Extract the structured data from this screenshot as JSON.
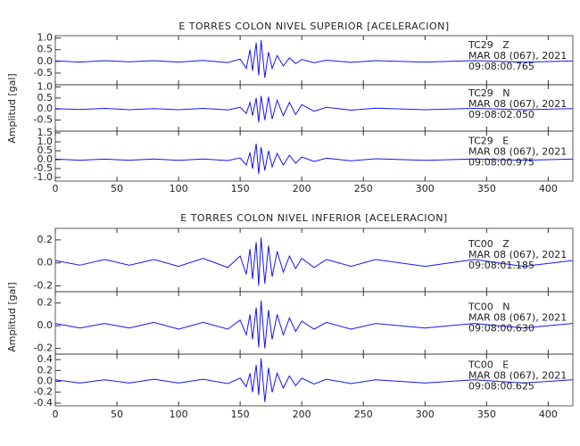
{
  "chart_data": [
    {
      "type": "line",
      "title": "E TORRES COLON NIVEL SUPERIOR [ACELERACION]",
      "ylabel": "Amplitud [gal]",
      "color": "#1414ff",
      "xlim": [
        0,
        420
      ],
      "xticks": [
        0,
        50,
        100,
        150,
        200,
        250,
        300,
        350,
        400
      ],
      "x": [
        0,
        20,
        40,
        60,
        80,
        100,
        120,
        140,
        150,
        155,
        158,
        160,
        163,
        165,
        167,
        170,
        173,
        176,
        180,
        185,
        190,
        195,
        200,
        210,
        220,
        240,
        260,
        300,
        340,
        380,
        420
      ],
      "panels": [
        {
          "station": "TC29   Z",
          "date": "MAR 08 (067), 2021",
          "time": "09:08:00.765",
          "ylim": [
            -1.0,
            1.1
          ],
          "yticks": [
            -0.5,
            {
              "value": 0,
              "label": "0.0"
            },
            0.5,
            {
              "value": 1,
              "label": "1.0"
            }
          ],
          "values": [
            0.02,
            -0.03,
            0.03,
            -0.02,
            0.03,
            -0.03,
            0.04,
            -0.05,
            0.1,
            -0.3,
            0.5,
            -0.4,
            0.8,
            -0.6,
            0.9,
            -0.7,
            0.4,
            -0.3,
            0.25,
            -0.2,
            0.15,
            -0.1,
            0.08,
            -0.06,
            0.05,
            -0.04,
            0.03,
            -0.03,
            0.03,
            -0.03,
            0.02
          ]
        },
        {
          "station": "TC29   N",
          "date": "MAR 08 (067), 2021",
          "time": "09:08:02.050",
          "ylim": [
            -1.0,
            1.1
          ],
          "yticks": [
            -0.5,
            {
              "value": 0,
              "label": "0.0"
            },
            0.5,
            {
              "value": 1,
              "label": "1.0"
            }
          ],
          "values": [
            0.02,
            -0.02,
            0.03,
            -0.03,
            0.02,
            -0.03,
            0.03,
            -0.04,
            0.08,
            -0.2,
            0.3,
            -0.3,
            0.5,
            -0.6,
            0.6,
            -0.5,
            0.55,
            -0.45,
            0.4,
            -0.3,
            0.3,
            -0.25,
            0.2,
            -0.1,
            0.08,
            -0.05,
            0.04,
            -0.03,
            0.03,
            -0.03,
            0.02
          ]
        },
        {
          "station": "TC29   E",
          "date": "MAR 08 (067), 2021",
          "time": "09:08:00.975",
          "ylim": [
            -1.2,
            1.6
          ],
          "yticks": [
            {
              "value": -1,
              "label": "-1.0"
            },
            -0.5,
            {
              "value": 0,
              "label": "0.0"
            },
            0.5,
            {
              "value": 1,
              "label": "1.0"
            },
            1.5
          ],
          "values": [
            0.03,
            -0.03,
            0.03,
            -0.03,
            0.04,
            -0.04,
            0.04,
            -0.05,
            0.1,
            -0.3,
            0.4,
            -0.5,
            0.9,
            -0.8,
            0.7,
            -0.6,
            0.5,
            -0.4,
            0.35,
            -0.3,
            0.25,
            -0.2,
            0.15,
            -0.1,
            0.08,
            -0.06,
            0.05,
            -0.04,
            0.04,
            -0.03,
            0.03
          ]
        }
      ]
    },
    {
      "type": "line",
      "title": "E TORRES COLON NIVEL INFERIOR [ACELERACION]",
      "ylabel": "Amplitud [gal]",
      "color": "#1414ff",
      "xlim": [
        0,
        420
      ],
      "xticks": [
        0,
        50,
        100,
        150,
        200,
        250,
        300,
        350,
        400
      ],
      "x": [
        0,
        20,
        40,
        60,
        80,
        100,
        120,
        140,
        150,
        155,
        158,
        160,
        163,
        165,
        167,
        170,
        173,
        176,
        180,
        185,
        190,
        195,
        200,
        210,
        220,
        240,
        260,
        300,
        340,
        380,
        420
      ],
      "panels": [
        {
          "station": "TC00   Z",
          "date": "MAR 08 (067), 2021",
          "time": "09:08:01.185",
          "ylim": [
            -0.25,
            0.3
          ],
          "yticks": [
            -0.2,
            {
              "value": 0,
              "label": "0.0"
            },
            0.2
          ],
          "values": [
            0.02,
            -0.02,
            0.03,
            -0.02,
            0.03,
            -0.03,
            0.04,
            -0.04,
            0.06,
            -0.1,
            0.12,
            -0.14,
            0.18,
            -0.2,
            0.22,
            -0.18,
            0.15,
            -0.12,
            0.1,
            -0.08,
            0.06,
            -0.05,
            0.04,
            -0.04,
            0.03,
            -0.03,
            0.03,
            -0.03,
            0.03,
            -0.03,
            0.02
          ]
        },
        {
          "station": "TC00   N",
          "date": "MAR 08 (067), 2021",
          "time": "09:08:00.630",
          "ylim": [
            -0.25,
            0.3
          ],
          "yticks": [
            -0.2,
            {
              "value": 0,
              "label": "0.0"
            },
            0.2
          ],
          "values": [
            0.02,
            -0.02,
            0.02,
            -0.02,
            0.03,
            -0.03,
            0.03,
            -0.03,
            0.05,
            -0.08,
            0.1,
            -0.12,
            0.16,
            -0.19,
            0.22,
            -0.2,
            0.14,
            -0.12,
            0.1,
            -0.08,
            0.07,
            -0.05,
            0.04,
            -0.03,
            0.03,
            -0.03,
            0.02,
            -0.02,
            0.02,
            -0.02,
            0.02
          ]
        },
        {
          "station": "TC00   E",
          "date": "MAR 08 (067), 2021",
          "time": "09:08:00.625",
          "ylim": [
            -0.45,
            0.5
          ],
          "yticks": [
            -0.4,
            -0.2,
            {
              "value": 0,
              "label": "0.0"
            },
            0.2,
            0.4
          ],
          "values": [
            0.03,
            -0.03,
            0.03,
            -0.03,
            0.04,
            -0.03,
            0.04,
            -0.04,
            0.06,
            -0.1,
            0.15,
            -0.2,
            0.3,
            -0.25,
            0.42,
            -0.38,
            0.25,
            -0.2,
            0.15,
            -0.12,
            0.1,
            -0.08,
            0.06,
            -0.05,
            0.04,
            -0.04,
            0.03,
            -0.03,
            0.03,
            -0.03,
            0.03
          ]
        }
      ]
    }
  ]
}
